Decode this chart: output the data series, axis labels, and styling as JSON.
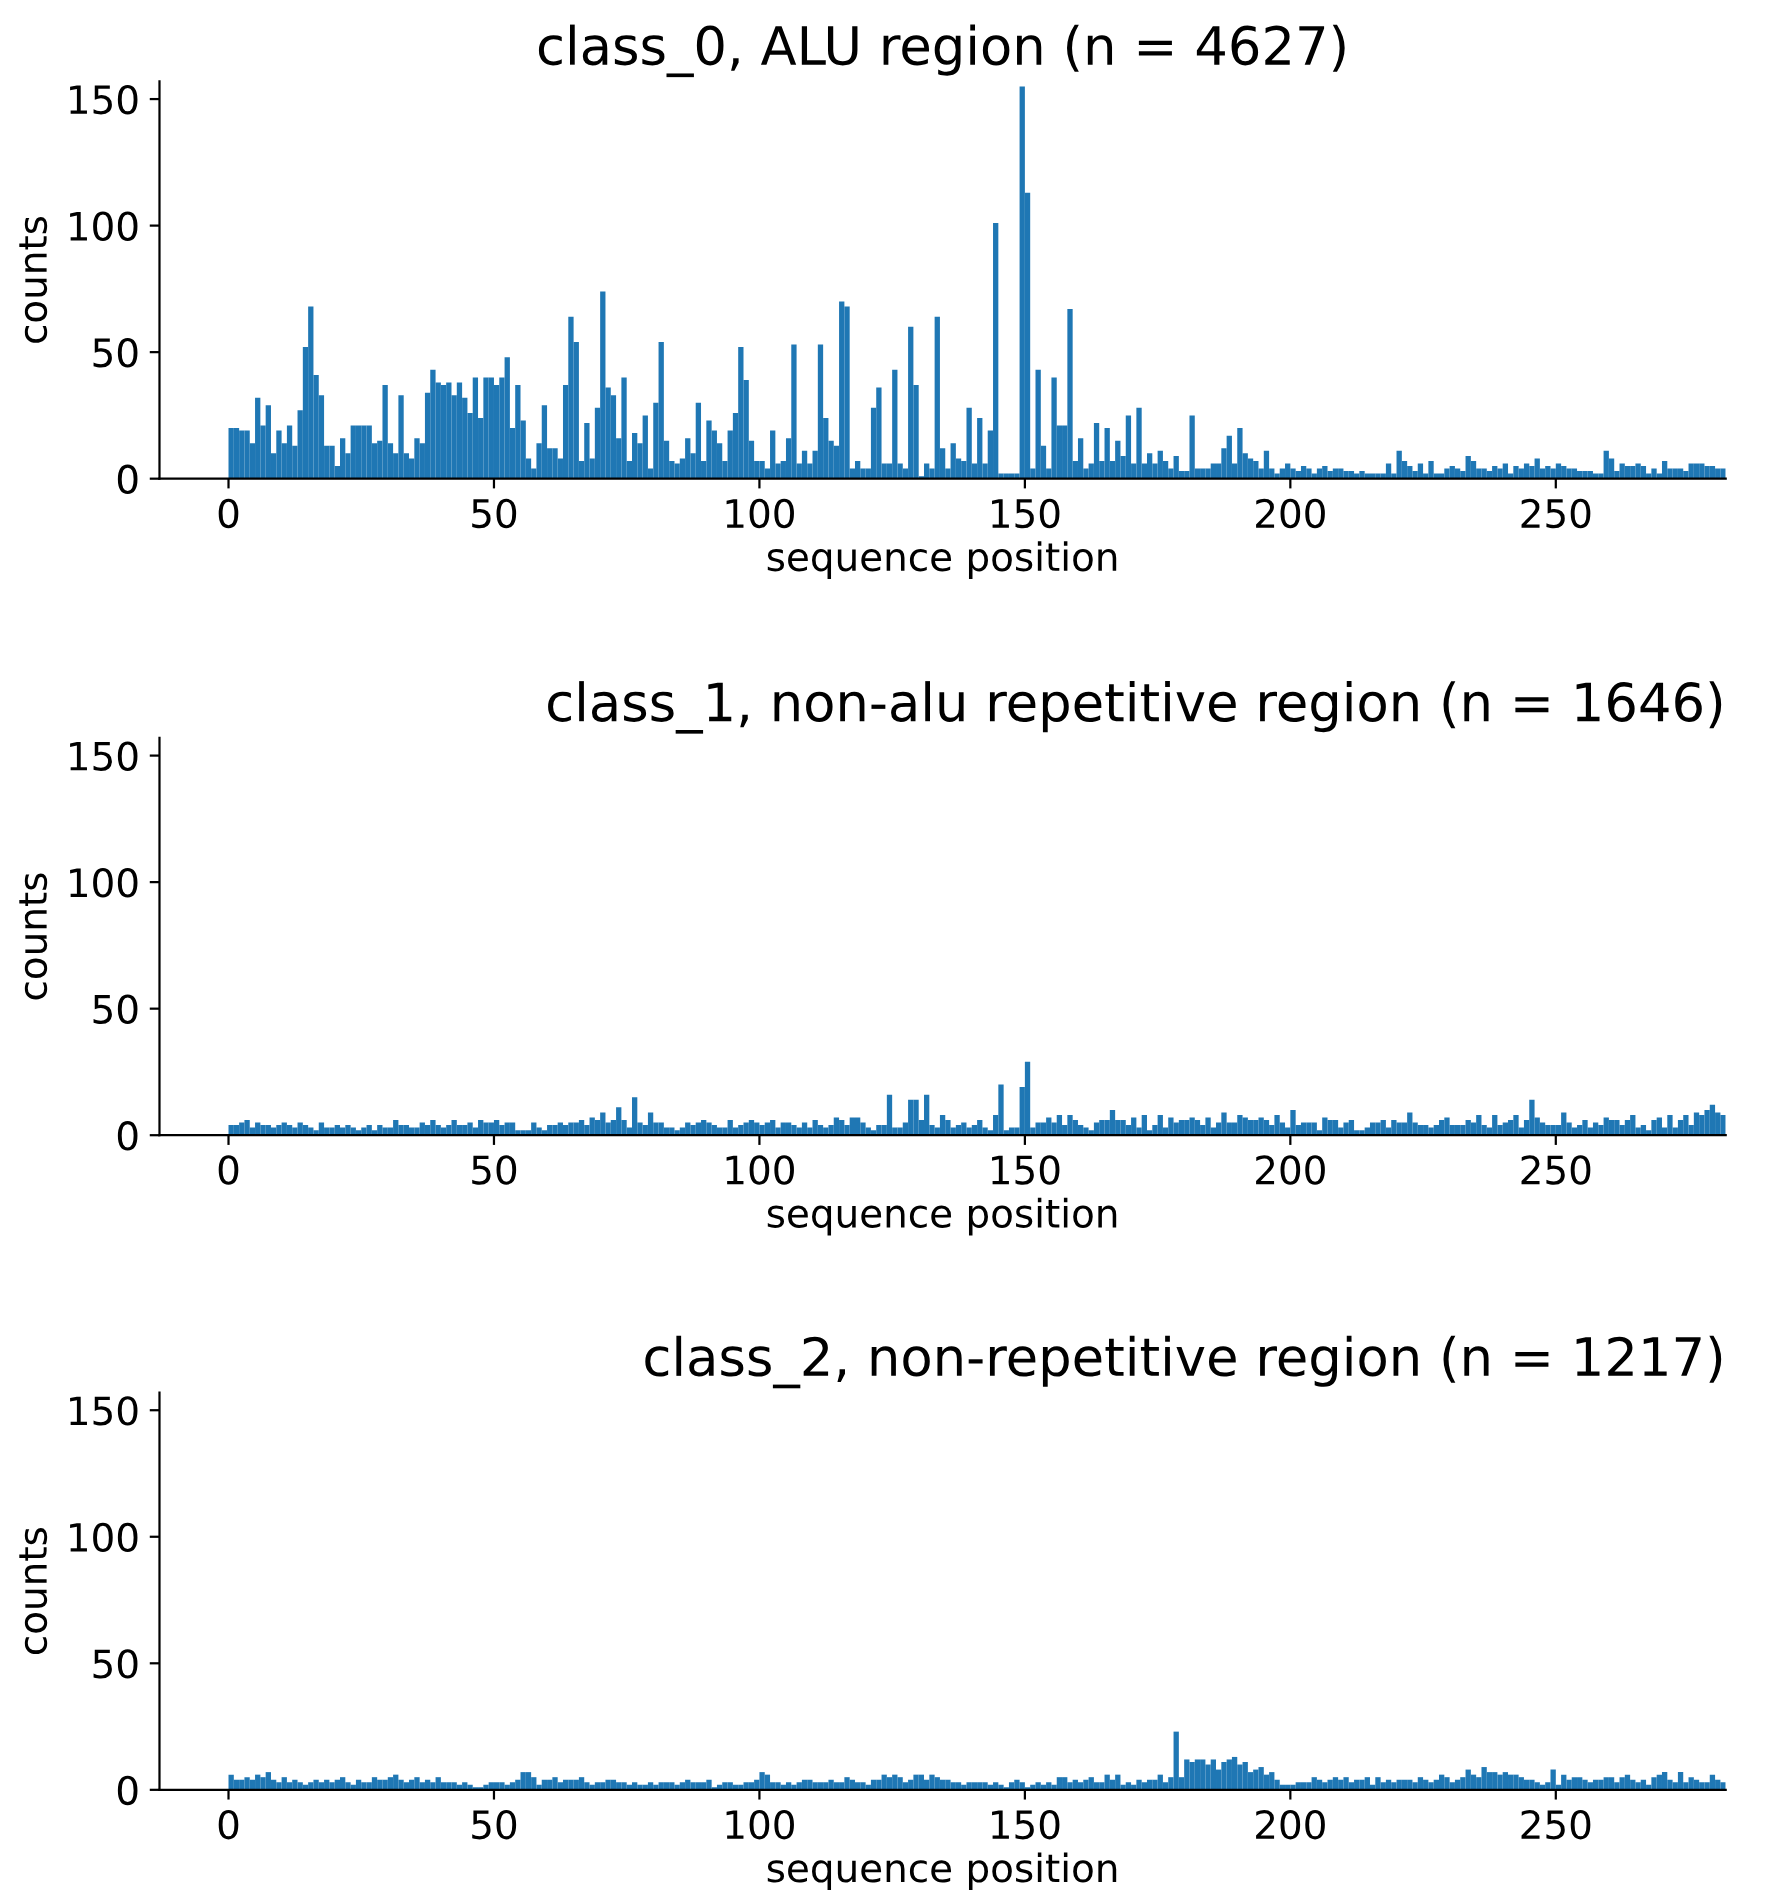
{
  "chart_data": [
    {
      "type": "histogram",
      "title": "class_0, ALU region (n = 4627)",
      "xlabel": "sequence position",
      "ylabel": "counts",
      "color": "#1f77b4",
      "xlim": [
        -13,
        282
      ],
      "xticks": [
        0,
        50,
        100,
        150,
        200,
        250
      ],
      "ylim": [
        0,
        157
      ],
      "yticks": [
        0,
        50,
        100,
        150
      ],
      "grid": false,
      "legend": false,
      "bins": [
        0,
        1,
        2,
        3,
        4,
        5,
        6,
        7,
        8,
        9,
        10,
        11,
        12,
        13,
        14,
        15,
        16,
        17,
        18,
        19,
        20,
        21,
        22,
        23,
        24,
        25,
        26,
        27,
        28,
        29,
        30,
        31,
        32,
        33,
        34,
        35,
        36,
        37,
        38,
        39,
        40,
        41,
        42,
        43,
        44,
        45,
        46,
        47,
        48,
        49,
        50,
        51,
        52,
        53,
        54,
        55,
        56,
        57,
        58,
        59,
        60,
        61,
        62,
        63,
        64,
        65,
        66,
        67,
        68,
        69,
        70,
        71,
        72,
        73,
        74,
        75,
        76,
        77,
        78,
        79,
        80,
        81,
        82,
        83,
        84,
        85,
        86,
        87,
        88,
        89,
        90,
        91,
        92,
        93,
        94,
        95,
        96,
        97,
        98,
        99,
        100,
        101,
        102,
        103,
        104,
        105,
        106,
        107,
        108,
        109,
        110,
        111,
        112,
        113,
        114,
        115,
        116,
        117,
        118,
        119,
        120,
        121,
        122,
        123,
        124,
        125,
        126,
        127,
        128,
        129,
        130,
        131,
        132,
        133,
        134,
        135,
        136,
        137,
        138,
        139,
        140,
        141,
        142,
        143,
        144,
        145,
        146,
        147,
        148,
        149,
        150,
        151,
        152,
        153,
        154,
        155,
        156,
        157,
        158,
        159,
        160,
        161,
        162,
        163,
        164,
        165,
        166,
        167,
        168,
        169,
        170,
        171,
        172,
        173,
        174,
        175,
        176,
        177,
        178,
        179,
        180,
        181,
        182,
        183,
        184,
        185,
        186,
        187,
        188,
        189,
        190,
        191,
        192,
        193,
        194,
        195,
        196,
        197,
        198,
        199,
        200,
        201,
        202,
        203,
        204,
        205,
        206,
        207,
        208,
        209,
        210,
        211,
        212,
        213,
        214,
        215,
        216,
        217,
        218,
        219,
        220,
        221,
        222,
        223,
        224,
        225,
        226,
        227,
        228,
        229,
        230,
        231,
        232,
        233,
        234,
        235,
        236,
        237,
        238,
        239,
        240,
        241,
        242,
        243,
        244,
        245,
        246,
        247,
        248,
        249,
        250,
        251,
        252,
        253,
        254,
        255,
        256,
        257,
        258,
        259,
        260,
        261,
        262,
        263,
        264,
        265,
        266,
        267,
        268,
        269,
        270,
        271,
        272,
        273,
        274,
        275,
        276,
        277,
        278,
        279,
        280,
        281,
        282
      ],
      "values": [
        20,
        20,
        19,
        19,
        14,
        32,
        21,
        29,
        10,
        19,
        14,
        21,
        13,
        27,
        52,
        68,
        41,
        33,
        13,
        13,
        5,
        16,
        10,
        21,
        21,
        21,
        21,
        14,
        15,
        37,
        14,
        10,
        33,
        10,
        8,
        16,
        14,
        34,
        43,
        38,
        37,
        38,
        33,
        38,
        32,
        26,
        40,
        24,
        40,
        40,
        37,
        40,
        48,
        20,
        37,
        23,
        8,
        4,
        14,
        29,
        12,
        12,
        8,
        37,
        64,
        54,
        7,
        22,
        8,
        28,
        74,
        36,
        33,
        16,
        40,
        7,
        18,
        14,
        25,
        4,
        30,
        54,
        15,
        7,
        6,
        8,
        16,
        10,
        30,
        7,
        23,
        19,
        14,
        7,
        19,
        26,
        52,
        39,
        15,
        7,
        7,
        4,
        19,
        6,
        7,
        16,
        53,
        6,
        11,
        6,
        11,
        53,
        24,
        15,
        13,
        70,
        68,
        4,
        7,
        4,
        4,
        28,
        36,
        6,
        6,
        43,
        6,
        4,
        60,
        37,
        1,
        6,
        4,
        64,
        12,
        4,
        14,
        8,
        7,
        28,
        6,
        24,
        6,
        19,
        101,
        2,
        2,
        2,
        2,
        155,
        113,
        4,
        43,
        13,
        4,
        40,
        21,
        21,
        67,
        7,
        16,
        4,
        6,
        22,
        7,
        20,
        7,
        15,
        9,
        25,
        6,
        28,
        6,
        10,
        6,
        11,
        7,
        4,
        9,
        3,
        3,
        25,
        4,
        4,
        4,
        6,
        6,
        12,
        17,
        6,
        20,
        10,
        8,
        7,
        4,
        11,
        4,
        2,
        4,
        6,
        4,
        3,
        5,
        4,
        2,
        4,
        5,
        3,
        4,
        4,
        3,
        3,
        2,
        3,
        2,
        2,
        2,
        2,
        6,
        2,
        11,
        7,
        5,
        3,
        6,
        2,
        7,
        2,
        2,
        4,
        5,
        4,
        3,
        9,
        7,
        4,
        4,
        3,
        5,
        4,
        6,
        2,
        5,
        4,
        6,
        5,
        8,
        4,
        5,
        4,
        6,
        5,
        4,
        4,
        3,
        3,
        3,
        2,
        2,
        11,
        8,
        3,
        6,
        5,
        5,
        6,
        5,
        2,
        4,
        2,
        7,
        4,
        4,
        4,
        3,
        6,
        6,
        6,
        5,
        5,
        4,
        4
      ]
    },
    {
      "type": "histogram",
      "title": "class_1, non-alu repetitive region (n = 1646)",
      "xlabel": "sequence position",
      "ylabel": "counts",
      "color": "#1f77b4",
      "xlim": [
        -13,
        282
      ],
      "xticks": [
        0,
        50,
        100,
        150,
        200,
        250
      ],
      "ylim": [
        0,
        157
      ],
      "yticks": [
        0,
        50,
        100,
        150
      ],
      "grid": false,
      "legend": false,
      "bins": [
        0,
        1,
        2,
        3,
        4,
        5,
        6,
        7,
        8,
        9,
        10,
        11,
        12,
        13,
        14,
        15,
        16,
        17,
        18,
        19,
        20,
        21,
        22,
        23,
        24,
        25,
        26,
        27,
        28,
        29,
        30,
        31,
        32,
        33,
        34,
        35,
        36,
        37,
        38,
        39,
        40,
        41,
        42,
        43,
        44,
        45,
        46,
        47,
        48,
        49,
        50,
        51,
        52,
        53,
        54,
        55,
        56,
        57,
        58,
        59,
        60,
        61,
        62,
        63,
        64,
        65,
        66,
        67,
        68,
        69,
        70,
        71,
        72,
        73,
        74,
        75,
        76,
        77,
        78,
        79,
        80,
        81,
        82,
        83,
        84,
        85,
        86,
        87,
        88,
        89,
        90,
        91,
        92,
        93,
        94,
        95,
        96,
        97,
        98,
        99,
        100,
        101,
        102,
        103,
        104,
        105,
        106,
        107,
        108,
        109,
        110,
        111,
        112,
        113,
        114,
        115,
        116,
        117,
        118,
        119,
        120,
        121,
        122,
        123,
        124,
        125,
        126,
        127,
        128,
        129,
        130,
        131,
        132,
        133,
        134,
        135,
        136,
        137,
        138,
        139,
        140,
        141,
        142,
        143,
        144,
        145,
        146,
        147,
        148,
        149,
        150,
        151,
        152,
        153,
        154,
        155,
        156,
        157,
        158,
        159,
        160,
        161,
        162,
        163,
        164,
        165,
        166,
        167,
        168,
        169,
        170,
        171,
        172,
        173,
        174,
        175,
        176,
        177,
        178,
        179,
        180,
        181,
        182,
        183,
        184,
        185,
        186,
        187,
        188,
        189,
        190,
        191,
        192,
        193,
        194,
        195,
        196,
        197,
        198,
        199,
        200,
        201,
        202,
        203,
        204,
        205,
        206,
        207,
        208,
        209,
        210,
        211,
        212,
        213,
        214,
        215,
        216,
        217,
        218,
        219,
        220,
        221,
        222,
        223,
        224,
        225,
        226,
        227,
        228,
        229,
        230,
        231,
        232,
        233,
        234,
        235,
        236,
        237,
        238,
        239,
        240,
        241,
        242,
        243,
        244,
        245,
        246,
        247,
        248,
        249,
        250,
        251,
        252,
        253,
        254,
        255,
        256,
        257,
        258,
        259,
        260,
        261,
        262,
        263,
        264,
        265,
        266,
        267,
        268,
        269,
        270,
        271,
        272,
        273,
        274,
        275,
        276,
        277,
        278,
        279,
        280,
        281,
        282
      ],
      "values": [
        4,
        4,
        5,
        6,
        3,
        5,
        4,
        4,
        3,
        4,
        5,
        4,
        3,
        5,
        4,
        3,
        2,
        5,
        3,
        3,
        4,
        3,
        4,
        3,
        2,
        3,
        4,
        2,
        4,
        3,
        3,
        6,
        4,
        4,
        3,
        3,
        5,
        4,
        6,
        4,
        3,
        4,
        6,
        4,
        4,
        5,
        3,
        6,
        5,
        5,
        6,
        4,
        5,
        5,
        2,
        2,
        2,
        5,
        3,
        2,
        4,
        4,
        5,
        4,
        5,
        5,
        6,
        4,
        7,
        6,
        9,
        5,
        6,
        11,
        6,
        3,
        15,
        5,
        4,
        9,
        5,
        5,
        3,
        3,
        2,
        3,
        5,
        4,
        5,
        6,
        5,
        4,
        3,
        3,
        6,
        3,
        4,
        5,
        6,
        5,
        4,
        5,
        6,
        3,
        5,
        5,
        4,
        3,
        5,
        3,
        6,
        4,
        3,
        4,
        7,
        6,
        4,
        7,
        7,
        5,
        3,
        2,
        4,
        4,
        16,
        3,
        3,
        5,
        14,
        14,
        6,
        16,
        4,
        3,
        8,
        6,
        3,
        4,
        5,
        3,
        4,
        6,
        3,
        2,
        8,
        20,
        2,
        3,
        3,
        19,
        29,
        3,
        5,
        5,
        7,
        5,
        8,
        4,
        8,
        6,
        4,
        3,
        2,
        5,
        6,
        6,
        10,
        6,
        6,
        4,
        7,
        3,
        8,
        2,
        4,
        8,
        3,
        7,
        5,
        6,
        6,
        7,
        6,
        4,
        7,
        3,
        5,
        9,
        5,
        5,
        8,
        7,
        6,
        6,
        7,
        6,
        4,
        8,
        5,
        3,
        10,
        4,
        5,
        5,
        5,
        2,
        7,
        6,
        6,
        3,
        5,
        6,
        2,
        2,
        3,
        5,
        5,
        6,
        3,
        6,
        5,
        5,
        9,
        5,
        4,
        4,
        3,
        4,
        6,
        7,
        4,
        4,
        4,
        6,
        5,
        8,
        4,
        3,
        8,
        4,
        5,
        6,
        8,
        3,
        6,
        14,
        7,
        5,
        4,
        4,
        4,
        9,
        5,
        3,
        4,
        6,
        3,
        5,
        4,
        7,
        6,
        6,
        4,
        6,
        8,
        3,
        4,
        2,
        6,
        7,
        3,
        8,
        3,
        6,
        8,
        4,
        9,
        8,
        10,
        12,
        9,
        8
      ]
    },
    {
      "type": "histogram",
      "title": "class_2, non-repetitive region (n = 1217)",
      "xlabel": "sequence position",
      "ylabel": "counts",
      "color": "#1f77b4",
      "xlim": [
        -13,
        282
      ],
      "xticks": [
        0,
        50,
        100,
        150,
        200,
        250
      ],
      "ylim": [
        0,
        157
      ],
      "yticks": [
        0,
        50,
        100,
        150
      ],
      "grid": false,
      "legend": false,
      "bins": [
        0,
        1,
        2,
        3,
        4,
        5,
        6,
        7,
        8,
        9,
        10,
        11,
        12,
        13,
        14,
        15,
        16,
        17,
        18,
        19,
        20,
        21,
        22,
        23,
        24,
        25,
        26,
        27,
        28,
        29,
        30,
        31,
        32,
        33,
        34,
        35,
        36,
        37,
        38,
        39,
        40,
        41,
        42,
        43,
        44,
        45,
        46,
        47,
        48,
        49,
        50,
        51,
        52,
        53,
        54,
        55,
        56,
        57,
        58,
        59,
        60,
        61,
        62,
        63,
        64,
        65,
        66,
        67,
        68,
        69,
        70,
        71,
        72,
        73,
        74,
        75,
        76,
        77,
        78,
        79,
        80,
        81,
        82,
        83,
        84,
        85,
        86,
        87,
        88,
        89,
        90,
        91,
        92,
        93,
        94,
        95,
        96,
        97,
        98,
        99,
        100,
        101,
        102,
        103,
        104,
        105,
        106,
        107,
        108,
        109,
        110,
        111,
        112,
        113,
        114,
        115,
        116,
        117,
        118,
        119,
        120,
        121,
        122,
        123,
        124,
        125,
        126,
        127,
        128,
        129,
        130,
        131,
        132,
        133,
        134,
        135,
        136,
        137,
        138,
        139,
        140,
        141,
        142,
        143,
        144,
        145,
        146,
        147,
        148,
        149,
        150,
        151,
        152,
        153,
        154,
        155,
        156,
        157,
        158,
        159,
        160,
        161,
        162,
        163,
        164,
        165,
        166,
        167,
        168,
        169,
        170,
        171,
        172,
        173,
        174,
        175,
        176,
        177,
        178,
        179,
        180,
        181,
        182,
        183,
        184,
        185,
        186,
        187,
        188,
        189,
        190,
        191,
        192,
        193,
        194,
        195,
        196,
        197,
        198,
        199,
        200,
        201,
        202,
        203,
        204,
        205,
        206,
        207,
        208,
        209,
        210,
        211,
        212,
        213,
        214,
        215,
        216,
        217,
        218,
        219,
        220,
        221,
        222,
        223,
        224,
        225,
        226,
        227,
        228,
        229,
        230,
        231,
        232,
        233,
        234,
        235,
        236,
        237,
        238,
        239,
        240,
        241,
        242,
        243,
        244,
        245,
        246,
        247,
        248,
        249,
        250,
        251,
        252,
        253,
        254,
        255,
        256,
        257,
        258,
        259,
        260,
        261,
        262,
        263,
        264,
        265,
        266,
        267,
        268,
        269,
        270,
        271,
        272,
        273,
        274,
        275,
        276,
        277,
        278,
        279,
        280,
        281,
        282
      ],
      "values": [
        6,
        4,
        4,
        5,
        4,
        6,
        5,
        7,
        4,
        3,
        5,
        3,
        4,
        3,
        2,
        3,
        4,
        3,
        4,
        3,
        4,
        5,
        3,
        2,
        4,
        3,
        3,
        5,
        4,
        4,
        5,
        6,
        4,
        3,
        4,
        5,
        3,
        4,
        3,
        5,
        3,
        3,
        3,
        2,
        3,
        2,
        1,
        1,
        2,
        3,
        3,
        3,
        2,
        3,
        4,
        7,
        7,
        5,
        2,
        4,
        4,
        5,
        3,
        4,
        4,
        4,
        5,
        3,
        2,
        3,
        3,
        4,
        4,
        3,
        3,
        2,
        3,
        2,
        2,
        3,
        2,
        3,
        3,
        3,
        2,
        3,
        4,
        3,
        3,
        3,
        4,
        1,
        2,
        3,
        3,
        2,
        2,
        3,
        3,
        4,
        7,
        6,
        3,
        3,
        2,
        3,
        2,
        3,
        4,
        4,
        3,
        3,
        3,
        4,
        3,
        3,
        5,
        4,
        3,
        3,
        2,
        4,
        4,
        6,
        5,
        6,
        5,
        3,
        4,
        6,
        6,
        4,
        6,
        5,
        4,
        4,
        3,
        3,
        2,
        3,
        3,
        3,
        3,
        2,
        3,
        2,
        1,
        3,
        4,
        3,
        1,
        2,
        3,
        2,
        3,
        2,
        5,
        5,
        3,
        4,
        3,
        4,
        5,
        3,
        3,
        6,
        4,
        6,
        2,
        3,
        2,
        4,
        3,
        4,
        4,
        6,
        3,
        5,
        23,
        5,
        12,
        11,
        12,
        12,
        10,
        12,
        8,
        11,
        12,
        13,
        10,
        11,
        7,
        8,
        9,
        6,
        7,
        4,
        2,
        2,
        2,
        3,
        3,
        3,
        5,
        4,
        3,
        4,
        5,
        4,
        5,
        3,
        4,
        4,
        5,
        2,
        5,
        3,
        4,
        3,
        4,
        4,
        4,
        3,
        5,
        4,
        3,
        4,
        6,
        5,
        3,
        4,
        5,
        8,
        6,
        5,
        9,
        7,
        7,
        6,
        7,
        6,
        6,
        5,
        4,
        4,
        3,
        2,
        3,
        8,
        2,
        6,
        4,
        5,
        5,
        4,
        3,
        4,
        4,
        5,
        5,
        3,
        5,
        6,
        4,
        3,
        4,
        2,
        5,
        6,
        7,
        4,
        3,
        7,
        3,
        5,
        4,
        3,
        3,
        6,
        4,
        3
      ]
    }
  ]
}
